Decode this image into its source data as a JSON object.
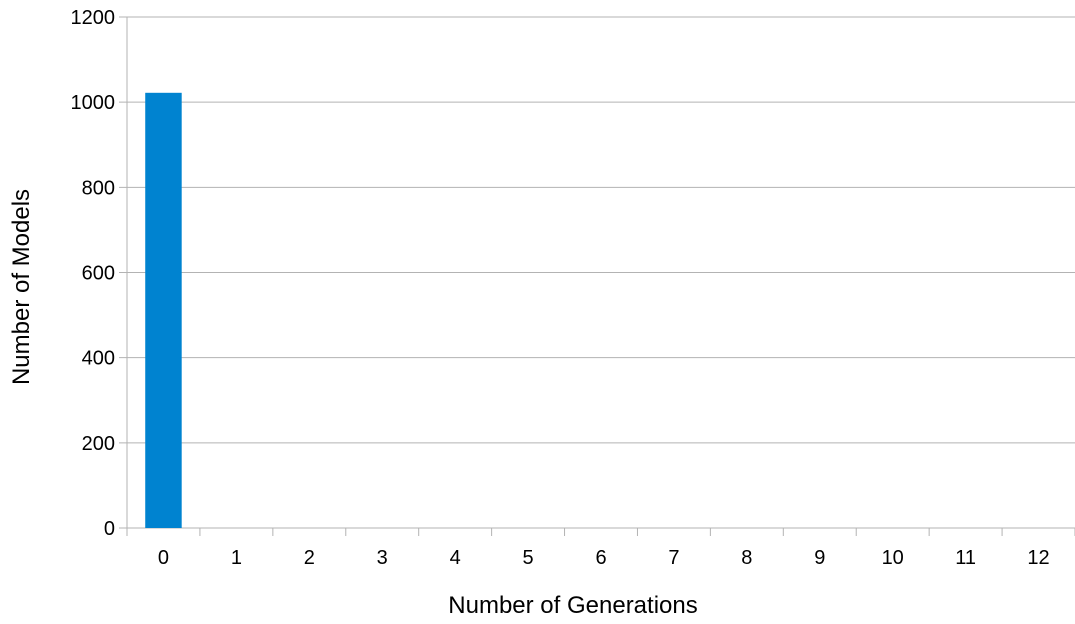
{
  "chart_data": {
    "type": "bar",
    "title": "",
    "xlabel": "Number of Generations",
    "ylabel": "Number of Models",
    "categories": [
      "0",
      "1",
      "2",
      "3",
      "4",
      "5",
      "6",
      "7",
      "8",
      "9",
      "10",
      "11",
      "12"
    ],
    "values": [
      1022,
      0,
      0,
      0,
      0,
      0,
      0,
      0,
      0,
      0,
      0,
      0,
      0
    ],
    "ylim": [
      0,
      1200
    ],
    "yticks": [
      "0",
      "200",
      "400",
      "600",
      "800",
      "1000",
      "1200"
    ],
    "grid": true,
    "legend": "none",
    "colors": {
      "bar": "#0083D0",
      "grid": "#B3B3B3",
      "axis": "#B3B3B3"
    }
  }
}
